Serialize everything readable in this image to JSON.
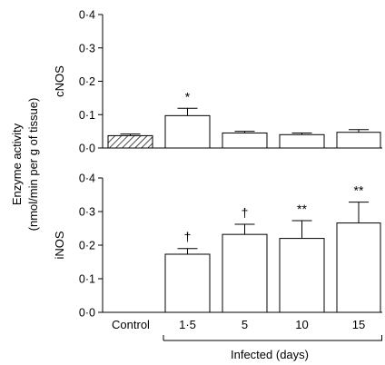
{
  "chart_data": {
    "type": "bar",
    "shared_ylabel": [
      "Enzyme activity",
      "(nmol/min per g of tissue)"
    ],
    "categories": [
      "Control",
      "1·5",
      "5",
      "10",
      "15"
    ],
    "group_label": "Infected (days)",
    "panels": [
      {
        "ylabel": "cNOS",
        "ylim": [
          0,
          0.4
        ],
        "yticks": [
          "0·0",
          "0·1",
          "0·2",
          "0·3",
          "0·4"
        ],
        "values": [
          0.037,
          0.097,
          0.045,
          0.04,
          0.047
        ],
        "errors": [
          0.005,
          0.022,
          0.005,
          0.005,
          0.008
        ],
        "annotations": [
          "",
          "*",
          "",
          "",
          ""
        ]
      },
      {
        "ylabel": "iNOS",
        "ylim": [
          0,
          0.4
        ],
        "yticks": [
          "0·0",
          "0·1",
          "0·2",
          "0·3",
          "0·4"
        ],
        "values": [
          null,
          0.173,
          0.232,
          0.22,
          0.266
        ],
        "errors": [
          null,
          0.017,
          0.03,
          0.053,
          0.062
        ],
        "annotations": [
          "",
          "†",
          "†",
          "**",
          "**"
        ]
      }
    ]
  }
}
